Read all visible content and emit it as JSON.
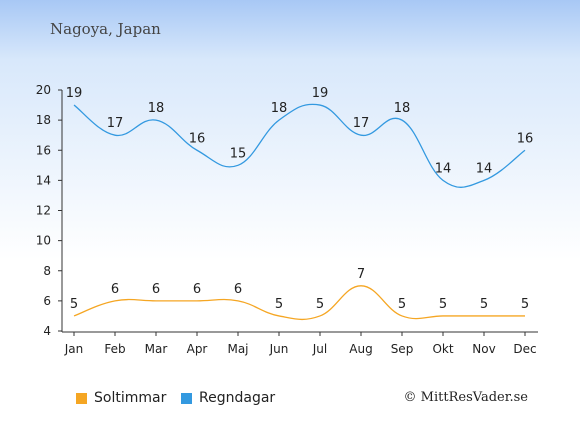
{
  "title": "Nagoya, Japan",
  "copyright": "© MittResVader.se",
  "colors": {
    "sun": "#f5a623",
    "rain": "#3399e0",
    "axis": "#333333"
  },
  "chart_data": {
    "type": "line",
    "categories": [
      "Jan",
      "Feb",
      "Mar",
      "Apr",
      "Maj",
      "Jun",
      "Jul",
      "Aug",
      "Sep",
      "Okt",
      "Nov",
      "Dec"
    ],
    "ylim": [
      4,
      20
    ],
    "yticks": [
      "4",
      "6",
      "8",
      "10",
      "12",
      "14",
      "16",
      "18",
      "20"
    ],
    "legend_position": "bottom",
    "series": [
      {
        "name": "Soltimmar",
        "color": "#f5a623",
        "values": [
          5,
          6,
          6,
          6,
          6,
          5,
          5,
          7,
          5,
          5,
          5,
          5
        ]
      },
      {
        "name": "Regndagar",
        "color": "#3399e0",
        "values": [
          19,
          17,
          18,
          16,
          15,
          18,
          19,
          17,
          18,
          14,
          14,
          16
        ]
      }
    ]
  }
}
